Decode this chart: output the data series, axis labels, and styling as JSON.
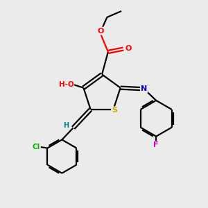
{
  "bg_color": "#ebebeb",
  "atom_colors": {
    "C": "#000000",
    "O": "#ff0000",
    "N": "#0000cc",
    "S": "#ccaa00",
    "Cl": "#00bb00",
    "F": "#dd00dd",
    "H": "#008888"
  },
  "bond_color": "#000000",
  "lw": 1.6
}
